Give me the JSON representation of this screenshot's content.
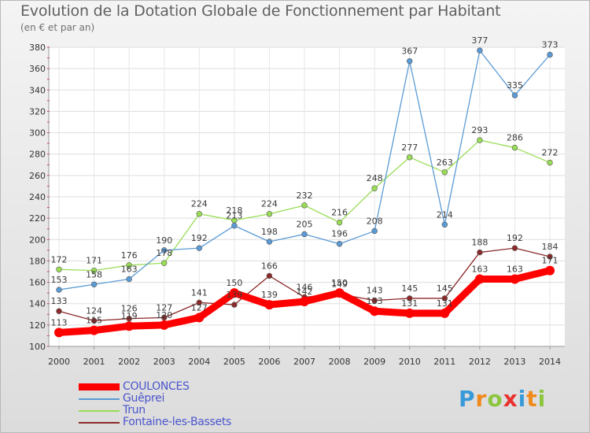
{
  "header": {
    "title": "Evolution de la Dotation Globale de Fonctionnement par Habitant",
    "subtitle": "(en € et par an)"
  },
  "brand": {
    "letters": [
      "P",
      "r",
      "o",
      "x",
      "i",
      "t",
      "i"
    ],
    "colors": [
      "#3a9ad9",
      "#f08a1c",
      "#8cc63f",
      "#e9322e",
      "#3a9ad9",
      "#f08a1c",
      "#8cc63f"
    ]
  },
  "chart_data": {
    "type": "line",
    "title": "Evolution de la Dotation Globale de Fonctionnement par Habitant",
    "subtitle": "(en € et par an)",
    "xlabel": "",
    "ylabel": "",
    "categories": [
      "2000",
      "2001",
      "2002",
      "2003",
      "2004",
      "2005",
      "2006",
      "2007",
      "2008",
      "2009",
      "2010",
      "2011",
      "2012",
      "2013",
      "2014"
    ],
    "ylim": [
      100,
      380
    ],
    "yticks": [
      100,
      120,
      140,
      160,
      180,
      200,
      220,
      240,
      260,
      280,
      300,
      320,
      340,
      360,
      380
    ],
    "grid": true,
    "legend_position": "bottom-left",
    "series": [
      {
        "name": "COULONCES",
        "color": "#ff0000",
        "line_width": 9,
        "values": [
          113,
          115,
          119,
          120,
          127,
          150,
          139,
          142,
          150,
          133,
          131,
          131,
          163,
          163,
          171
        ],
        "labels": [
          "113",
          "115",
          "119",
          "120",
          "127",
          "150",
          "139",
          "142",
          "150",
          "133",
          "131",
          "131",
          "163",
          "163",
          "171"
        ]
      },
      {
        "name": "Guêprei",
        "color": "#5b9bd5",
        "line_width": 1.3,
        "values": [
          153,
          158,
          163,
          190,
          192,
          213,
          198,
          205,
          196,
          208,
          367,
          214,
          377,
          335,
          373
        ],
        "labels": [
          "153",
          "158",
          "163",
          "190",
          "192",
          "213",
          "198",
          "205",
          "196",
          "208",
          "367",
          "214",
          "377",
          "335",
          "373"
        ]
      },
      {
        "name": "Trun",
        "color": "#99dd55",
        "line_width": 1.3,
        "values": [
          172,
          171,
          176,
          178,
          224,
          218,
          224,
          232,
          216,
          248,
          277,
          263,
          293,
          286,
          272
        ],
        "labels": [
          "172",
          "171",
          "176",
          "178",
          "224",
          "218",
          "224",
          "232",
          "216",
          "248",
          "277",
          "263",
          "293",
          "286",
          "272"
        ]
      },
      {
        "name": "Fontaine-les-Bassets",
        "color": "#8b2a2a",
        "line_width": 1.3,
        "values": [
          133,
          124,
          126,
          127,
          141,
          139,
          166,
          146,
          149,
          143,
          145,
          145,
          188,
          192,
          184
        ],
        "labels": [
          "133",
          "124",
          "126",
          "127",
          "141",
          "139",
          "166",
          "146",
          "149",
          "143",
          "145",
          "145",
          "188",
          "192",
          "184"
        ]
      }
    ]
  }
}
